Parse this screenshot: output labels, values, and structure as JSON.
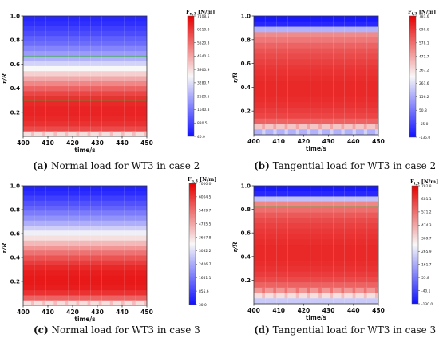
{
  "figure": {
    "captions": [
      {
        "letter": "(a)",
        "text": " Normal load for WT3 in case 2"
      },
      {
        "letter": "(b)",
        "text": " Tangential load for WT3 in case 2"
      },
      {
        "letter": "(c)",
        "text": " Normal load for WT3 in case 3"
      },
      {
        "letter": "(d)",
        "text": " Tangential load for WT3 in case 3"
      }
    ]
  },
  "colors": {
    "low": "#1010ff",
    "mid": "#f8f8f8",
    "high": "#e60000",
    "outline": "#22aa22"
  },
  "chart_data": [
    {
      "type": "heatmap",
      "panel": "a",
      "xlabel": "time/s",
      "ylabel": "r/R",
      "xlim": [
        400,
        450
      ],
      "ylim": [
        0,
        1.0
      ],
      "xticks": [
        "400",
        "410",
        "420",
        "430",
        "440",
        "450"
      ],
      "yticks": [
        "0.2",
        "0.4",
        "0.6",
        "0.8",
        "1.0"
      ],
      "colorbar_title": "F",
      "colorbar_sub": "n,3",
      "colorbar_unit": " [N/m]",
      "colorbar_min": 40.0,
      "colorbar_max": 7108.5,
      "colorbar_ticks": [
        "7108.5",
        "6210.8",
        "5520.8",
        "4540.6",
        "3900.9",
        "3280.7",
        "2520.5",
        "1640.8",
        "880.5",
        "40.0"
      ],
      "band_levels": [
        0.05,
        0.07,
        0.1,
        0.13,
        0.17,
        0.2,
        0.25,
        0.3,
        0.35,
        0.42,
        0.5,
        0.58,
        0.66,
        0.73,
        0.8,
        0.86,
        0.9,
        0.92,
        0.93,
        0.93,
        0.92,
        0.9,
        0.85,
        0.55
      ],
      "outline_bands": [
        8,
        16
      ],
      "tooth_bands": [
        23
      ]
    },
    {
      "type": "heatmap",
      "panel": "b",
      "xlabel": "time/s",
      "ylabel": "r/R",
      "xlim": [
        400,
        450
      ],
      "ylim": [
        0,
        1.0
      ],
      "xticks": [
        "400",
        "410",
        "420",
        "430",
        "440",
        "450"
      ],
      "yticks": [
        "0.2",
        "0.4",
        "0.6",
        "0.8",
        "1.0"
      ],
      "colorbar_title": "F",
      "colorbar_sub": "t,3",
      "colorbar_unit": " [N/m]",
      "colorbar_min": -135.0,
      "colorbar_max": 781.6,
      "colorbar_ticks": [
        "781.6",
        "690.6",
        "578.1",
        "471.7",
        "367.2",
        "261.6",
        "156.2",
        "50.8",
        "-55.0",
        "-135.0"
      ],
      "band_levels": [
        0.02,
        0.05,
        0.35,
        0.72,
        0.76,
        0.8,
        0.83,
        0.85,
        0.87,
        0.89,
        0.9,
        0.91,
        0.92,
        0.92,
        0.92,
        0.91,
        0.9,
        0.88,
        0.86,
        0.8,
        0.6,
        0.35
      ],
      "outline_bands": [],
      "tooth_bands": [
        20,
        21
      ]
    },
    {
      "type": "heatmap",
      "panel": "c",
      "xlabel": "time/s",
      "ylabel": "r/R",
      "xlim": [
        400,
        450
      ],
      "ylim": [
        0,
        1.0
      ],
      "xticks": [
        "400",
        "410",
        "420",
        "430",
        "440",
        "450"
      ],
      "yticks": [
        "0.2",
        "0.4",
        "0.6",
        "0.8",
        "1.0"
      ],
      "colorbar_title": "F",
      "colorbar_sub": "n,3",
      "colorbar_unit": " [N/m]",
      "colorbar_min": 30.0,
      "colorbar_max": 7000.0,
      "colorbar_ticks": [
        "7000.0",
        "6004.5",
        "5409.7",
        "4735.5",
        "3667.8",
        "3082.2",
        "2406.7",
        "1651.1",
        "855.6",
        "30.0"
      ],
      "band_levels": [
        0.04,
        0.06,
        0.1,
        0.14,
        0.18,
        0.23,
        0.28,
        0.34,
        0.41,
        0.48,
        0.55,
        0.63,
        0.7,
        0.77,
        0.83,
        0.88,
        0.92,
        0.94,
        0.95,
        0.95,
        0.94,
        0.9,
        0.8,
        0.55
      ],
      "outline_bands": [],
      "tooth_bands": [
        23
      ]
    },
    {
      "type": "heatmap",
      "panel": "d",
      "xlabel": "time/s",
      "ylabel": "r/R",
      "xlim": [
        400,
        450
      ],
      "ylim": [
        0,
        1.0
      ],
      "xticks": [
        "400",
        "410",
        "420",
        "430",
        "440",
        "450"
      ],
      "yticks": [
        "0.2",
        "0.4",
        "0.6",
        "0.8",
        "1.0"
      ],
      "colorbar_title": "F",
      "colorbar_sub": "t,3",
      "colorbar_unit": " [N/m]",
      "colorbar_min": -130.0,
      "colorbar_max": 782.8,
      "colorbar_ticks": [
        "782.8",
        "681.1",
        "571.2",
        "474.3",
        "369.7",
        "265.9",
        "161.7",
        "55.8",
        "-40.1",
        "-130.0"
      ],
      "band_levels": [
        0.02,
        0.05,
        0.38,
        0.73,
        0.78,
        0.82,
        0.85,
        0.87,
        0.89,
        0.9,
        0.91,
        0.92,
        0.92,
        0.92,
        0.91,
        0.9,
        0.88,
        0.85,
        0.8,
        0.7,
        0.55,
        0.4
      ],
      "outline_bands": [
        3
      ],
      "tooth_bands": [
        19,
        20
      ]
    }
  ]
}
